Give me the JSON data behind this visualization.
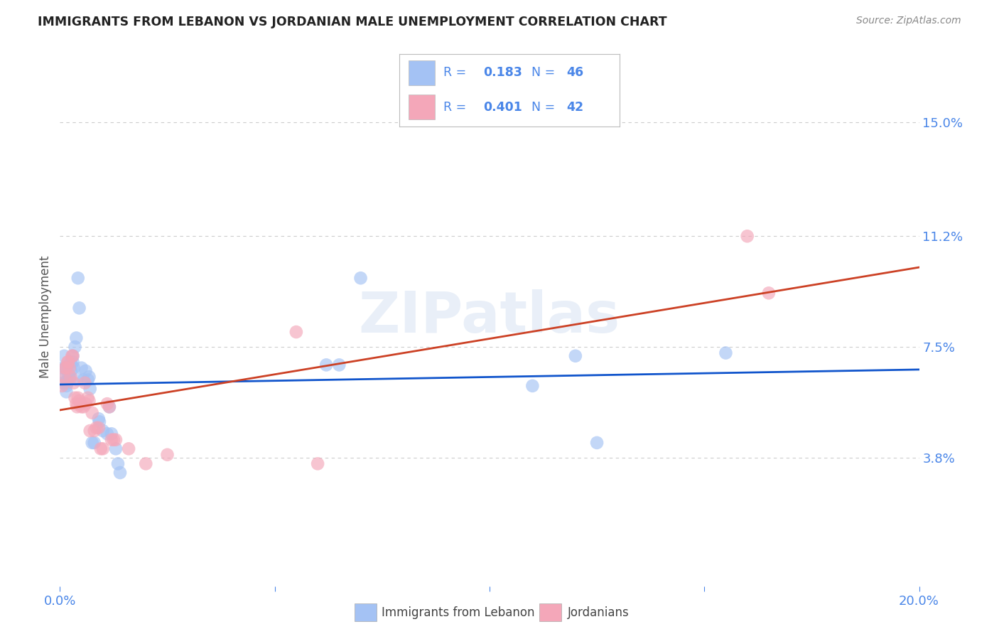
{
  "title": "IMMIGRANTS FROM LEBANON VS JORDANIAN MALE UNEMPLOYMENT CORRELATION CHART",
  "source": "Source: ZipAtlas.com",
  "xlabel_blue": "Immigrants from Lebanon",
  "xlabel_pink": "Jordanians",
  "ylabel": "Male Unemployment",
  "watermark": "ZIPatlas",
  "xlim": [
    0.0,
    0.2
  ],
  "ylim": [
    -0.005,
    0.175
  ],
  "yticks": [
    0.038,
    0.075,
    0.112,
    0.15
  ],
  "ytick_labels": [
    "3.8%",
    "7.5%",
    "11.2%",
    "15.0%"
  ],
  "xticks": [
    0.0,
    0.05,
    0.1,
    0.15,
    0.2
  ],
  "xtick_labels": [
    "0.0%",
    "",
    "",
    "",
    "20.0%"
  ],
  "legend_blue_r": "0.183",
  "legend_blue_n": "46",
  "legend_pink_r": "0.401",
  "legend_pink_n": "42",
  "blue_color": "#a4c2f4",
  "pink_color": "#f4a7b9",
  "blue_line_color": "#1155cc",
  "pink_line_color": "#cc4125",
  "blue_scatter": [
    [
      0.0005,
      0.068
    ],
    [
      0.0008,
      0.063
    ],
    [
      0.001,
      0.072
    ],
    [
      0.0012,
      0.068
    ],
    [
      0.0013,
      0.065
    ],
    [
      0.0015,
      0.062
    ],
    [
      0.0015,
      0.06
    ],
    [
      0.0017,
      0.063
    ],
    [
      0.0018,
      0.064
    ],
    [
      0.002,
      0.066
    ],
    [
      0.0022,
      0.065
    ],
    [
      0.0023,
      0.064
    ],
    [
      0.0025,
      0.067
    ],
    [
      0.0025,
      0.07
    ],
    [
      0.003,
      0.072
    ],
    [
      0.003,
      0.07
    ],
    [
      0.0032,
      0.068
    ],
    [
      0.0035,
      0.075
    ],
    [
      0.0038,
      0.078
    ],
    [
      0.004,
      0.064
    ],
    [
      0.0042,
      0.098
    ],
    [
      0.0045,
      0.088
    ],
    [
      0.005,
      0.068
    ],
    [
      0.0055,
      0.064
    ],
    [
      0.006,
      0.067
    ],
    [
      0.0065,
      0.064
    ],
    [
      0.0068,
      0.065
    ],
    [
      0.007,
      0.061
    ],
    [
      0.0075,
      0.043
    ],
    [
      0.008,
      0.043
    ],
    [
      0.009,
      0.051
    ],
    [
      0.0092,
      0.05
    ],
    [
      0.01,
      0.047
    ],
    [
      0.011,
      0.046
    ],
    [
      0.0115,
      0.055
    ],
    [
      0.012,
      0.046
    ],
    [
      0.013,
      0.041
    ],
    [
      0.0135,
      0.036
    ],
    [
      0.014,
      0.033
    ],
    [
      0.062,
      0.069
    ],
    [
      0.065,
      0.069
    ],
    [
      0.07,
      0.098
    ],
    [
      0.11,
      0.062
    ],
    [
      0.12,
      0.072
    ],
    [
      0.125,
      0.043
    ],
    [
      0.155,
      0.073
    ]
  ],
  "pink_scatter": [
    [
      0.0005,
      0.062
    ],
    [
      0.001,
      0.065
    ],
    [
      0.0012,
      0.068
    ],
    [
      0.0015,
      0.068
    ],
    [
      0.0018,
      0.07
    ],
    [
      0.002,
      0.07
    ],
    [
      0.0022,
      0.068
    ],
    [
      0.0025,
      0.065
    ],
    [
      0.0028,
      0.072
    ],
    [
      0.003,
      0.072
    ],
    [
      0.0032,
      0.063
    ],
    [
      0.0035,
      0.058
    ],
    [
      0.0038,
      0.056
    ],
    [
      0.004,
      0.055
    ],
    [
      0.0042,
      0.058
    ],
    [
      0.0045,
      0.057
    ],
    [
      0.0048,
      0.056
    ],
    [
      0.005,
      0.055
    ],
    [
      0.0055,
      0.055
    ],
    [
      0.0058,
      0.063
    ],
    [
      0.006,
      0.056
    ],
    [
      0.0065,
      0.058
    ],
    [
      0.0068,
      0.057
    ],
    [
      0.007,
      0.047
    ],
    [
      0.0075,
      0.053
    ],
    [
      0.008,
      0.047
    ],
    [
      0.0085,
      0.048
    ],
    [
      0.009,
      0.048
    ],
    [
      0.0095,
      0.041
    ],
    [
      0.01,
      0.041
    ],
    [
      0.011,
      0.056
    ],
    [
      0.0115,
      0.055
    ],
    [
      0.012,
      0.044
    ],
    [
      0.0125,
      0.044
    ],
    [
      0.013,
      0.044
    ],
    [
      0.016,
      0.041
    ],
    [
      0.02,
      0.036
    ],
    [
      0.025,
      0.039
    ],
    [
      0.055,
      0.08
    ],
    [
      0.06,
      0.036
    ],
    [
      0.16,
      0.112
    ],
    [
      0.165,
      0.093
    ]
  ],
  "background_color": "#ffffff",
  "grid_color": "#cccccc",
  "title_color": "#222222",
  "source_color": "#888888",
  "tick_label_color": "#4a86e8"
}
